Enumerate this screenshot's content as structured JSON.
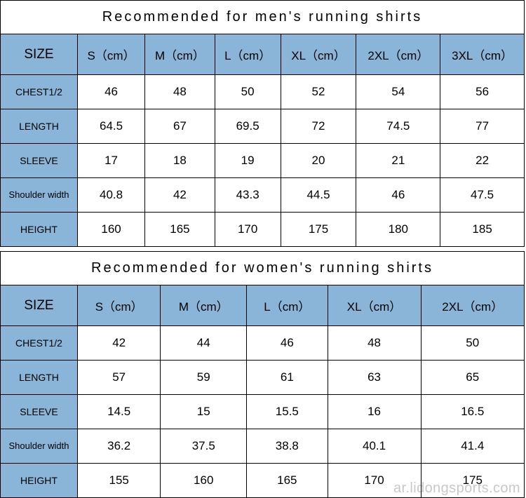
{
  "colors": {
    "header_bg": "#8ab4d8",
    "cell_bg": "#ffffff",
    "border": "#000000",
    "text": "#000000",
    "watermark": "rgba(0,0,0,0.22)"
  },
  "tables": {
    "men": {
      "title": "Recommended  for  men's  running  shirts",
      "columns": [
        {
          "label": "SIZE"
        },
        {
          "label": "S（cm）"
        },
        {
          "label": "M（cm）"
        },
        {
          "label": "L（cm）"
        },
        {
          "label": "XL（cm）"
        },
        {
          "label": "2XL（cm）"
        },
        {
          "label": "3XL（cm）"
        }
      ],
      "rows": [
        {
          "label": "CHEST1/2",
          "values": [
            "46",
            "48",
            "50",
            "52",
            "54",
            "56"
          ]
        },
        {
          "label": "LENGTH",
          "values": [
            "64.5",
            "67",
            "69.5",
            "72",
            "74.5",
            "77"
          ]
        },
        {
          "label": "SLEEVE",
          "values": [
            "17",
            "18",
            "19",
            "20",
            "21",
            "22"
          ]
        },
        {
          "label": "Shoulder width",
          "values": [
            "40.8",
            "42",
            "43.3",
            "44.5",
            "46",
            "47.5"
          ],
          "shoulder": true
        },
        {
          "label": "HEIGHT",
          "values": [
            "160",
            "165",
            "170",
            "175",
            "180",
            "185"
          ]
        }
      ]
    },
    "women": {
      "title": "Recommended  for  women's  running  shirts",
      "columns": [
        {
          "label": "SIZE"
        },
        {
          "label": "S（cm）"
        },
        {
          "label": "M（cm）"
        },
        {
          "label": "L（cm）"
        },
        {
          "label": "XL（cm）"
        },
        {
          "label": "2XL（cm）"
        }
      ],
      "rows": [
        {
          "label": "CHEST1/2",
          "values": [
            "42",
            "44",
            "46",
            "48",
            "50"
          ]
        },
        {
          "label": "LENGTH",
          "values": [
            "57",
            "59",
            "61",
            "63",
            "65"
          ]
        },
        {
          "label": "SLEEVE",
          "values": [
            "14.5",
            "15",
            "15.5",
            "16",
            "16.5"
          ]
        },
        {
          "label": "Shoulder width",
          "values": [
            "36.2",
            "37.5",
            "38.8",
            "40.1",
            "41.4"
          ],
          "shoulder": true
        },
        {
          "label": "HEIGHT",
          "values": [
            "155",
            "160",
            "165",
            "170",
            "175"
          ]
        }
      ]
    }
  },
  "watermark": "ar.lidongsports.com"
}
